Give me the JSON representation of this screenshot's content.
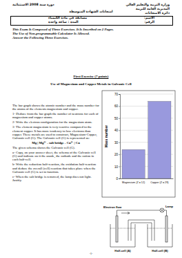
{
  "header": {
    "right": [
      "وزارة التربية والتعليم العالي",
      "المديرية العامة للتربية",
      "دائرة الامتحانات"
    ],
    "left": "دورة سنة 2008 الاستثنائية",
    "center": "امتحانات الشهادة المتوسطة",
    "box_left": [
      "مسابقة في مادة الكيمياء",
      "المدة : ساعة واحدة"
    ],
    "box_right": [
      "الاسم:",
      "الرقم:"
    ]
  },
  "intro": [
    "This Exam Is Composed of Three Exercises. It Is Inscribed on 2 Pages.",
    "The Use of Non-programmable Calculator Is Allowed.",
    "Answer the Following Three Exercises."
  ],
  "exercise": {
    "title": "First Exercise (7 points)",
    "subtitle": "Use of Magnesium and Copper Metals in Galvanic Cell",
    "paragraphs": [
      "The bar graph shows the atomic number and the mass number for the atoms of the elements magnesium and copper.",
      "1- Deduce from the bar graph the number of neutrons for each of magnesium and copper atoms.",
      "2- Write the electron configuration for the magnesium atom.",
      "3- The element magnesium is very reactive compared to the element copper. It has more tendency to lose electrons than copper. These metals are used to construct, Magnesium-Copper, Galvanic cell (G). The Galvanic cell (G) is represented as:",
      "Mg | Mg²⁺ - salt bridge - Cu²⁺ | Cu",
      "The given schema shows the Galvanic cell (G).",
      "a- Copy, on your answer sheet, the schema of the Galvanic cell (G) and indicate on it the anode, the cathode and the cation in each half-cell.",
      "b- Write the reduction half-reaction, the oxidation half-reaction and deduce the overall (cell) reaction that takes place when the Galvanic cell (G) is set to function.",
      "c- When the salt bridge is removed, the lamp does not light. Justify."
    ]
  },
  "chart_data": {
    "type": "bar",
    "ylabel": "Mass number",
    "categories": [
      "Magnesium (Z = 12)",
      "Copper (Z = 29)"
    ],
    "values": [
      24,
      64
    ],
    "color": "#9999dd",
    "ylim": [
      0,
      70
    ],
    "yticks": [
      0,
      10,
      20,
      30,
      40,
      50,
      60,
      70
    ],
    "grid": true
  },
  "diagram": {
    "electron_flow": "Electron flow",
    "lamp": "Lamp",
    "half_cell_a": "Half-cell (A)",
    "half_cell_b": "Half-cell (B)"
  },
  "footer": "-1-"
}
